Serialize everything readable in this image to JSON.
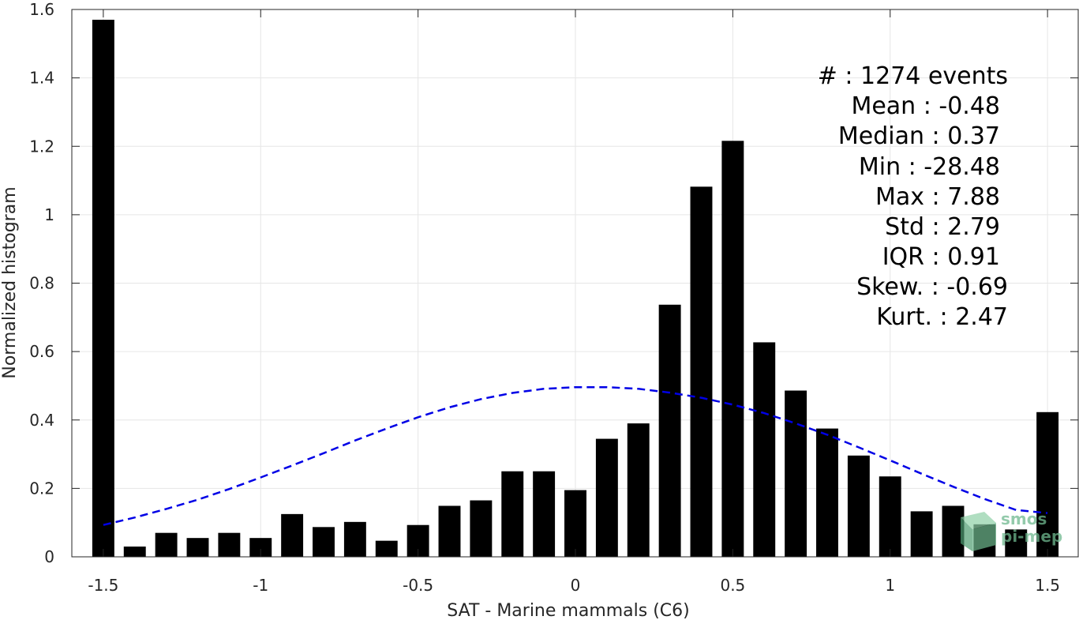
{
  "chart_data": {
    "type": "bar",
    "xlabel": "SAT - Marine mammals (C6)",
    "ylabel": "Normalized histogram",
    "xlim": [
      -1.6,
      1.6
    ],
    "ylim": [
      0,
      1.6
    ],
    "xticks": [
      -1.5,
      -1,
      -0.5,
      0,
      0.5,
      1,
      1.5
    ],
    "xtick_labels": [
      "-1.5",
      "-1",
      "-0.5",
      "0",
      "0.5",
      "1",
      "1.5"
    ],
    "yticks": [
      0,
      0.2,
      0.4,
      0.6,
      0.8,
      1,
      1.2,
      1.4,
      1.6
    ],
    "ytick_labels": [
      "0",
      "0.2",
      "0.4",
      "0.6",
      "0.8",
      "1",
      "1.2",
      "1.4",
      "1.6"
    ],
    "grid": true,
    "bar_width": 0.07,
    "bar_color": "#000000",
    "bars": [
      {
        "x": -1.5,
        "y": 1.57
      },
      {
        "x": -1.4,
        "y": 0.03
      },
      {
        "x": -1.3,
        "y": 0.07
      },
      {
        "x": -1.2,
        "y": 0.055
      },
      {
        "x": -1.1,
        "y": 0.07
      },
      {
        "x": -1.0,
        "y": 0.055
      },
      {
        "x": -0.9,
        "y": 0.125
      },
      {
        "x": -0.8,
        "y": 0.087
      },
      {
        "x": -0.7,
        "y": 0.102
      },
      {
        "x": -0.6,
        "y": 0.047
      },
      {
        "x": -0.5,
        "y": 0.093
      },
      {
        "x": -0.4,
        "y": 0.149
      },
      {
        "x": -0.3,
        "y": 0.165
      },
      {
        "x": -0.2,
        "y": 0.25
      },
      {
        "x": -0.1,
        "y": 0.25
      },
      {
        "x": 0.0,
        "y": 0.195
      },
      {
        "x": 0.1,
        "y": 0.345
      },
      {
        "x": 0.2,
        "y": 0.39
      },
      {
        "x": 0.3,
        "y": 0.737
      },
      {
        "x": 0.4,
        "y": 1.082
      },
      {
        "x": 0.5,
        "y": 1.216
      },
      {
        "x": 0.6,
        "y": 0.627
      },
      {
        "x": 0.7,
        "y": 0.486
      },
      {
        "x": 0.8,
        "y": 0.375
      },
      {
        "x": 0.9,
        "y": 0.296
      },
      {
        "x": 1.0,
        "y": 0.235
      },
      {
        "x": 1.1,
        "y": 0.133
      },
      {
        "x": 1.2,
        "y": 0.149
      },
      {
        "x": 1.3,
        "y": 0.095
      },
      {
        "x": 1.4,
        "y": 0.08
      },
      {
        "x": 1.5,
        "y": 0.423
      }
    ],
    "fit_curve": {
      "style": "dashed",
      "color": "#0000e6",
      "points": [
        [
          -1.5,
          0.093
        ],
        [
          -1.4,
          0.115
        ],
        [
          -1.3,
          0.14
        ],
        [
          -1.2,
          0.167
        ],
        [
          -1.1,
          0.198
        ],
        [
          -1.0,
          0.232
        ],
        [
          -0.9,
          0.267
        ],
        [
          -0.8,
          0.303
        ],
        [
          -0.7,
          0.34
        ],
        [
          -0.6,
          0.375
        ],
        [
          -0.5,
          0.408
        ],
        [
          -0.4,
          0.437
        ],
        [
          -0.3,
          0.461
        ],
        [
          -0.2,
          0.479
        ],
        [
          -0.1,
          0.491
        ],
        [
          0.0,
          0.496
        ],
        [
          0.1,
          0.496
        ],
        [
          0.2,
          0.491
        ],
        [
          0.3,
          0.48
        ],
        [
          0.4,
          0.465
        ],
        [
          0.5,
          0.445
        ],
        [
          0.6,
          0.42
        ],
        [
          0.7,
          0.39
        ],
        [
          0.8,
          0.357
        ],
        [
          0.9,
          0.32
        ],
        [
          1.0,
          0.282
        ],
        [
          1.1,
          0.243
        ],
        [
          1.2,
          0.205
        ],
        [
          1.3,
          0.169
        ],
        [
          1.4,
          0.137
        ],
        [
          1.5,
          0.128
        ]
      ]
    }
  },
  "stats": [
    {
      "label": "#  : 1274 events"
    },
    {
      "label": "Mean : -0.48"
    },
    {
      "label": "Median : 0.37"
    },
    {
      "label": "Min : -28.48"
    },
    {
      "label": "Max : 7.88"
    },
    {
      "label": "Std : 2.79"
    },
    {
      "label": "IQR : 0.91"
    },
    {
      "label": "Skew. : -0.69"
    },
    {
      "label": "Kurt. : 2.47"
    }
  ],
  "watermark": {
    "line1": "smos",
    "line2": "pi-mep",
    "color": "#6fb98f"
  }
}
